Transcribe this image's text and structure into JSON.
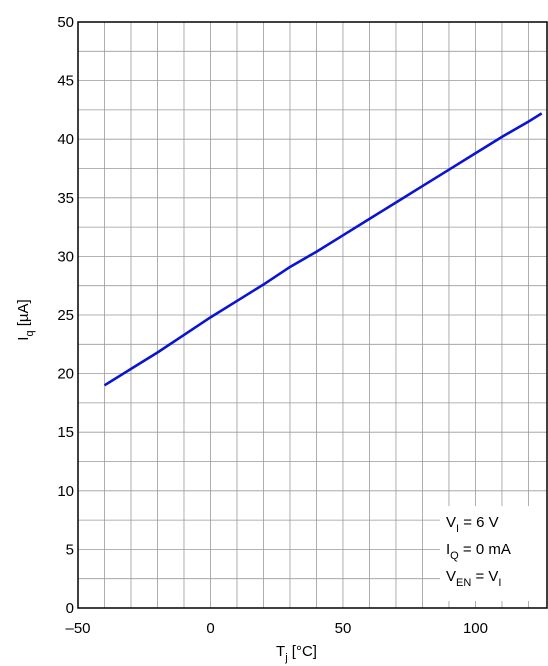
{
  "chart_data": {
    "type": "line",
    "xlabel": [
      {
        "t": "T"
      },
      {
        "sub": "j"
      },
      {
        "t": " [°C]"
      }
    ],
    "ylabel": [
      {
        "t": "I"
      },
      {
        "sub": "q"
      },
      {
        "t": " [µA]"
      }
    ],
    "annotations": [
      [
        {
          "t": "V"
        },
        {
          "sub": "I"
        },
        {
          "t": " = 6 V"
        }
      ],
      [
        {
          "t": "I"
        },
        {
          "sub": "Q"
        },
        {
          "t": " = 0 mA"
        }
      ],
      [
        {
          "t": "V"
        },
        {
          "sub": "EN"
        },
        {
          "t": " = V"
        },
        {
          "sub": "I"
        }
      ]
    ],
    "x": [
      -40,
      -30,
      -20,
      -10,
      0,
      10,
      20,
      30,
      40,
      50,
      60,
      70,
      80,
      90,
      100,
      110,
      120,
      125
    ],
    "series": [
      {
        "color": "#0a14d2",
        "values": [
          19.0,
          20.4,
          21.8,
          23.3,
          24.8,
          26.2,
          27.6,
          29.1,
          30.4,
          31.8,
          33.2,
          34.6,
          36.0,
          37.4,
          38.8,
          40.2,
          41.5,
          42.2
        ]
      }
    ],
    "xlim": [
      -50,
      127
    ],
    "ylim": [
      0,
      50
    ],
    "xticks": [
      {
        "value": -50,
        "label": "–50"
      },
      0,
      50,
      100
    ],
    "yticks": [
      0,
      5,
      10,
      15,
      20,
      25,
      30,
      35,
      40,
      45,
      50
    ],
    "minor_xticks": [
      -40,
      -30,
      -20,
      -10,
      10,
      20,
      30,
      40,
      60,
      70,
      80,
      90,
      110,
      120
    ],
    "minor_yticks": [
      2.5,
      7.5,
      12.5,
      17.5,
      22.5,
      27.5,
      32.5,
      37.5,
      42.5,
      47.5
    ],
    "grid": true
  }
}
